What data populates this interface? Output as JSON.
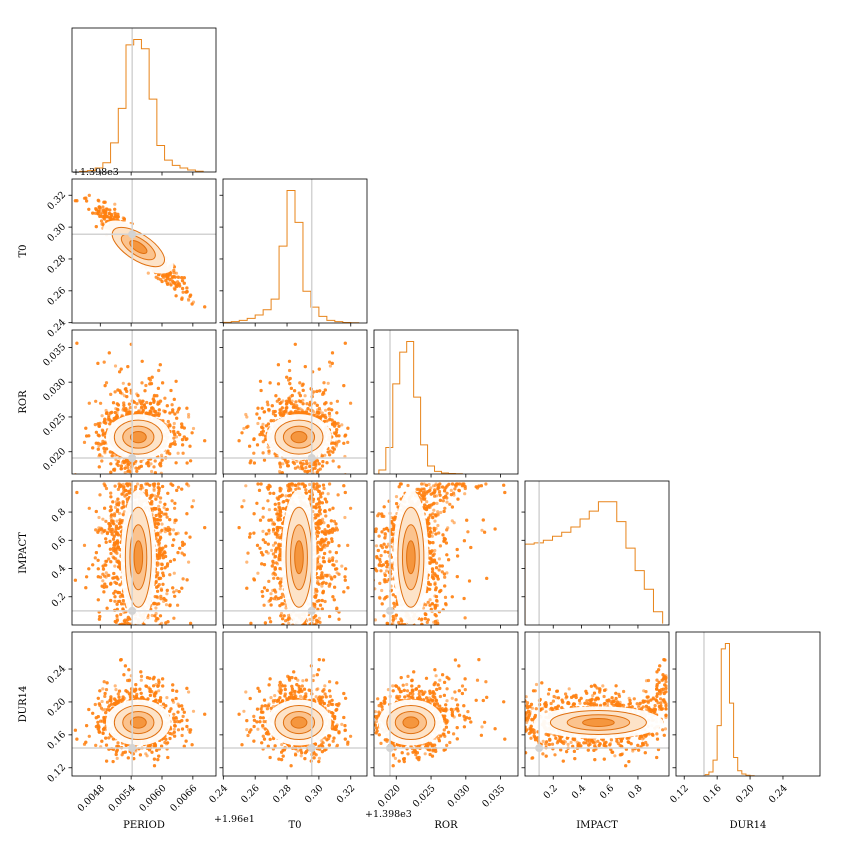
{
  "chart_data": {
    "type": "corner",
    "parameters": [
      "PERIOD",
      "T0",
      "ROR",
      "IMPACT",
      "DUR14"
    ],
    "axis_labels": [
      "PERIOD",
      "T0",
      "ROR",
      "IMPACT",
      "DUR14"
    ],
    "offset_labels": {
      "PERIOD": "+1.96e1",
      "T0": "+1.398e3"
    },
    "ranges": {
      "PERIOD": [
        0.00425,
        0.00705
      ],
      "T0": [
        0.2398,
        0.3302
      ],
      "ROR": [
        0.0168,
        0.0375
      ],
      "IMPACT": [
        0.0,
        1.02
      ],
      "DUR14": [
        0.11,
        0.285
      ]
    },
    "ticks": {
      "PERIOD": [
        "0.0048",
        "0.0054",
        "0.0060",
        "0.0066"
      ],
      "T0": [
        "0.24",
        "0.26",
        "0.28",
        "0.30",
        "0.32"
      ],
      "ROR": [
        "0.020",
        "0.025",
        "0.030",
        "0.035"
      ],
      "IMPACT": [
        "0.2",
        "0.4",
        "0.6",
        "0.8"
      ],
      "DUR14": [
        "0.12",
        "0.16",
        "0.20",
        "0.24"
      ]
    },
    "truths": {
      "PERIOD": 0.00542,
      "T0": 0.2955,
      "ROR": 0.0191,
      "IMPACT": 0.1,
      "DUR14": 0.144
    },
    "centers": {
      "PERIOD": 0.00554,
      "T0": 0.2875,
      "ROR": 0.0221,
      "IMPACT": 0.55,
      "DUR14": 0.175
    },
    "histograms": {
      "PERIOD": {
        "edges": [
          0.0044,
          0.00455,
          0.0047,
          0.00485,
          0.005,
          0.00515,
          0.0053,
          0.00545,
          0.0056,
          0.00575,
          0.0059,
          0.00605,
          0.0062,
          0.00635,
          0.0065,
          0.00665,
          0.0068
        ],
        "counts": [
          0.005,
          0.01,
          0.03,
          0.07,
          0.22,
          0.48,
          0.96,
          1.0,
          0.93,
          0.55,
          0.2,
          0.09,
          0.05,
          0.03,
          0.015,
          0.006
        ]
      },
      "T0": {
        "edges": [
          0.24,
          0.245,
          0.25,
          0.255,
          0.26,
          0.265,
          0.27,
          0.275,
          0.28,
          0.285,
          0.29,
          0.295,
          0.3,
          0.305,
          0.31,
          0.315,
          0.32,
          0.325
        ],
        "counts": [
          0.005,
          0.01,
          0.02,
          0.035,
          0.06,
          0.1,
          0.18,
          0.58,
          1.0,
          0.76,
          0.24,
          0.12,
          0.05,
          0.02,
          0.01,
          0.004,
          0.002
        ]
      },
      "ROR": {
        "edges": [
          0.0175,
          0.0185,
          0.0195,
          0.0205,
          0.0215,
          0.0225,
          0.0235,
          0.0245,
          0.0255,
          0.0265,
          0.0275,
          0.0285,
          0.0295
        ],
        "counts": [
          0.03,
          0.2,
          0.68,
          0.92,
          1.0,
          0.58,
          0.22,
          0.06,
          0.02,
          0.008,
          0.004,
          0.002
        ]
      },
      "IMPACT": {
        "edges": [
          0.0,
          0.065,
          0.13,
          0.195,
          0.26,
          0.325,
          0.39,
          0.455,
          0.52,
          0.585,
          0.65,
          0.715,
          0.78,
          0.845,
          0.91,
          0.975
        ],
        "counts": [
          0.61,
          0.62,
          0.64,
          0.67,
          0.7,
          0.74,
          0.8,
          0.86,
          0.93,
          0.93,
          0.78,
          0.58,
          0.41,
          0.27,
          0.1,
          0.01
        ]
      },
      "DUR14": {
        "edges": [
          0.145,
          0.15,
          0.155,
          0.16,
          0.165,
          0.17,
          0.175,
          0.18,
          0.185,
          0.19,
          0.195,
          0.2,
          0.205
        ],
        "counts": [
          0.01,
          0.03,
          0.12,
          0.38,
          0.96,
          1.0,
          0.55,
          0.14,
          0.04,
          0.015,
          0.006,
          0.002
        ]
      }
    },
    "colors": {
      "samples": "#ff7f0e",
      "contour_line": "#e07010",
      "histogram": "#e8841a",
      "truth": "#d3d3d3",
      "axis": "#000000"
    },
    "grid": false,
    "legend": "none"
  }
}
